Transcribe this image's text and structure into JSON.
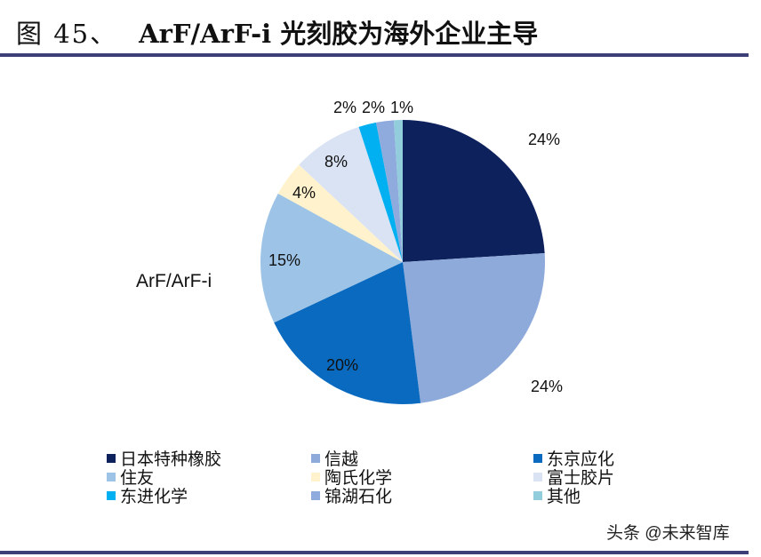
{
  "header": {
    "figure_label": "图 45、",
    "title": "ArF/ArF-i 光刻胶为海外企业主导"
  },
  "series_label": "ArF/ArF-i",
  "watermark": "头条 @未来智库",
  "chart_data": {
    "type": "pie",
    "title": "ArF/ArF-i 光刻胶为海外企业主导",
    "series_name": "ArF/ArF-i",
    "start_angle_deg": 0,
    "direction": "clockwise",
    "categories": [
      "日本特种橡胶",
      "信越",
      "东京应化",
      "住友",
      "陶氏化学",
      "富士胶片",
      "东进化学",
      "锦湖石化",
      "其他"
    ],
    "values": [
      24,
      24,
      20,
      15,
      4,
      8,
      2,
      2,
      1
    ],
    "labels": [
      "24%",
      "24%",
      "20%",
      "15%",
      "4%",
      "8%",
      "2%",
      "2%",
      "1%"
    ],
    "colors": [
      "#0d215c",
      "#8eaadb",
      "#0a6abf",
      "#9dc3e6",
      "#fff2cc",
      "#dae3f3",
      "#00b0f0",
      "#8faadc",
      "#92cddc"
    ],
    "legend_position": "bottom"
  },
  "legend": [
    {
      "label": "日本特种橡胶",
      "color": "#0d215c"
    },
    {
      "label": "信越",
      "color": "#8eaadb"
    },
    {
      "label": "东京应化",
      "color": "#0a6abf"
    },
    {
      "label": "住友",
      "color": "#9dc3e6"
    },
    {
      "label": "陶氏化学",
      "color": "#fff2cc"
    },
    {
      "label": "富士胶片",
      "color": "#dae3f3"
    },
    {
      "label": "东进化学",
      "color": "#00b0f0"
    },
    {
      "label": "锦湖石化",
      "color": "#8faadc"
    },
    {
      "label": "其他",
      "color": "#92cddc"
    }
  ]
}
